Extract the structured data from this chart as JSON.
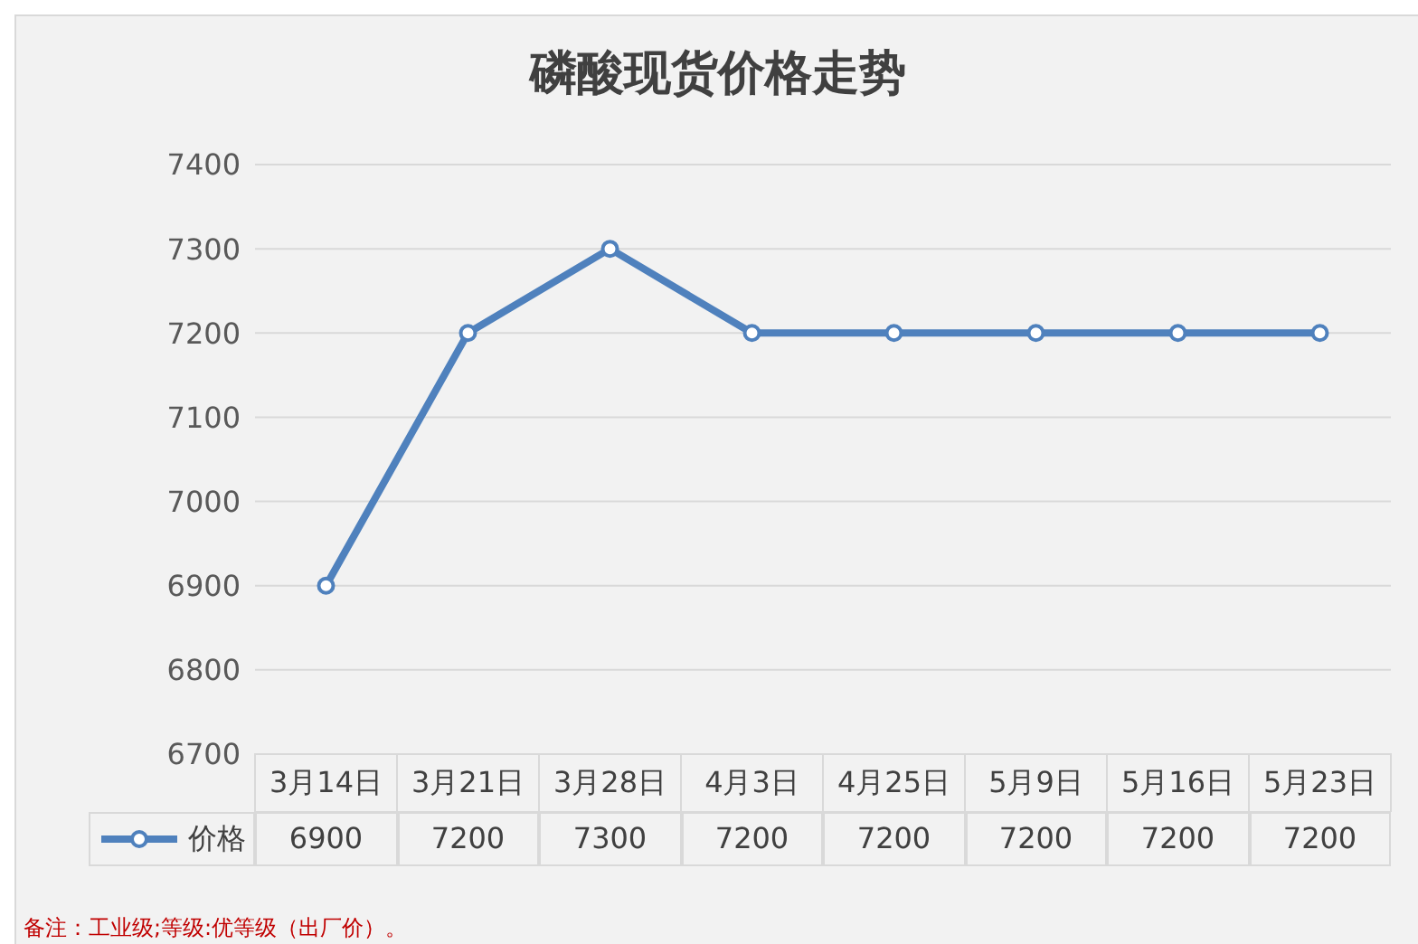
{
  "chart_data": {
    "type": "line",
    "title": "磷酸现货价格走势",
    "categories": [
      "3月14日",
      "3月21日",
      "3月28日",
      "4月3日",
      "4月25日",
      "5月9日",
      "5月16日",
      "5月23日"
    ],
    "series": [
      {
        "name": "价格",
        "color": "#4f81bd",
        "values": [
          6900,
          7200,
          7300,
          7200,
          7200,
          7200,
          7200,
          7200
        ]
      }
    ],
    "ylim": [
      6700,
      7400
    ],
    "yticks": [
      6700,
      6800,
      6900,
      7000,
      7100,
      7200,
      7300,
      7400
    ],
    "grid": "y",
    "legend": "bottom",
    "marker": "circle",
    "line_style": "solid",
    "data_labels": true,
    "annotations": [
      "备注：工业级;等级:优等级（出厂价）。"
    ]
  }
}
